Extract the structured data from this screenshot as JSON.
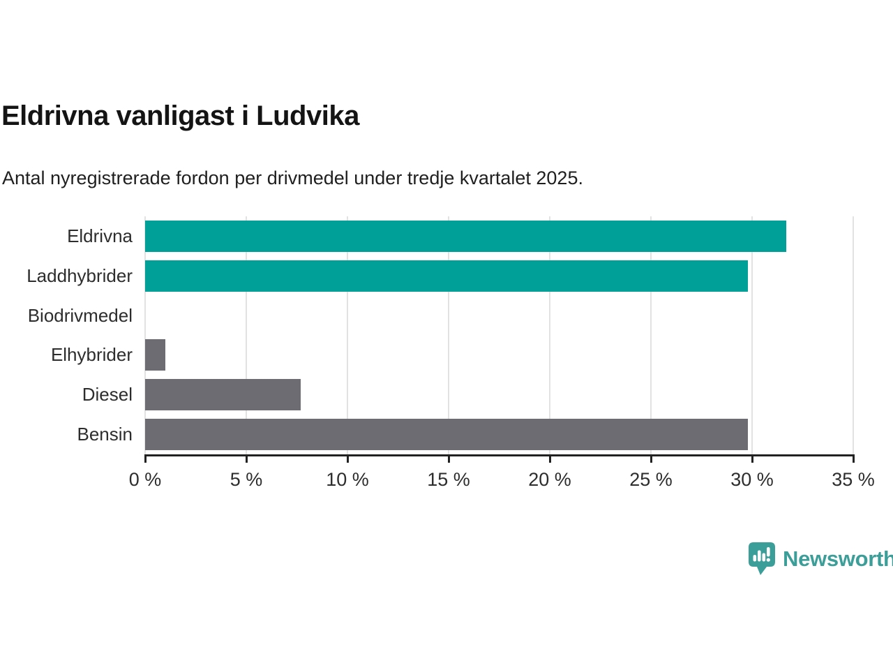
{
  "header": {
    "title": "Eldrivna vanligast i Ludvika",
    "subtitle": "Antal nyregistrerade fordon per drivmedel under tredje kvartalet 2025."
  },
  "chart_data": {
    "type": "bar",
    "orientation": "horizontal",
    "title": "Eldrivna vanligast i Ludvika",
    "subtitle": "Antal nyregistrerade fordon per drivmedel under tredje kvartalet 2025.",
    "categories": [
      "Eldrivna",
      "Laddhybrider",
      "Biodrivmedel",
      "Elhybrider",
      "Diesel",
      "Bensin"
    ],
    "values": [
      31.7,
      29.8,
      0,
      1.0,
      7.7,
      29.8
    ],
    "unit": "%",
    "bar_colors": [
      "#00a099",
      "#00a099",
      "#6c6c72",
      "#6c6c72",
      "#6c6c72",
      "#6c6c72"
    ],
    "xlim": [
      0,
      35
    ],
    "ticks": [
      0,
      5,
      10,
      15,
      20,
      25,
      30,
      35
    ],
    "tick_labels": [
      "0 %",
      "5 %",
      "10 %",
      "15 %",
      "20 %",
      "25 %",
      "30 %",
      "35 %"
    ],
    "grid": true,
    "legend": "none"
  },
  "colors": {
    "teal": "#00a099",
    "gray": "#6c6c72",
    "axis": "#222222",
    "gridline": "#e2e2e2",
    "text": "#2d2d2d",
    "logo_teal": "#3b9e98"
  },
  "branding": {
    "logo_text": "Newsworthy",
    "logo_icon": "newsworthy-bar-chart-bubble-icon"
  }
}
